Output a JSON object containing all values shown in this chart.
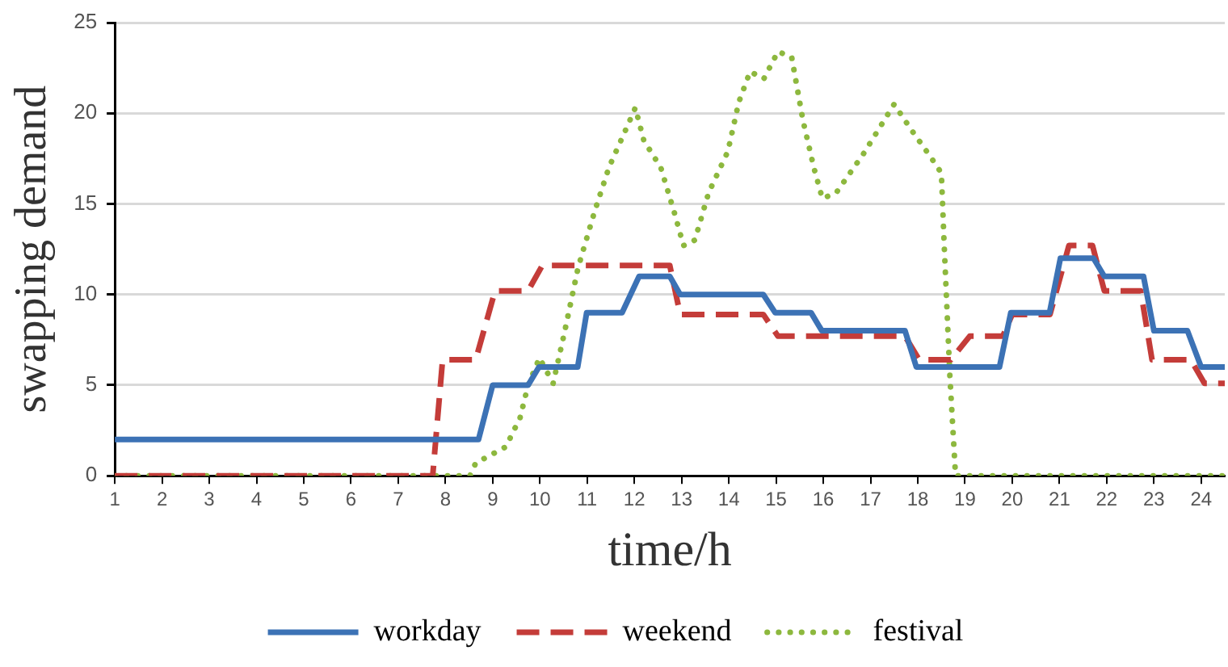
{
  "chart_data": {
    "type": "line",
    "xlabel": "time/h",
    "ylabel": "swapping demand",
    "xlim": [
      1,
      24.5
    ],
    "xticks": [
      1,
      2,
      3,
      4,
      5,
      6,
      7,
      8,
      9,
      10,
      11,
      12,
      13,
      14,
      15,
      16,
      17,
      18,
      19,
      20,
      21,
      22,
      23,
      24
    ],
    "ylim": [
      0,
      25
    ],
    "yticks": [
      0,
      5,
      10,
      15,
      20,
      25
    ],
    "grid": "y",
    "legend": "bottom",
    "marker": "none",
    "series": [
      {
        "name": "workday",
        "color": "#3c72b5",
        "line_style": "solid",
        "x": [
          1,
          8.7,
          9.0,
          9.75,
          9.98,
          10.8,
          10.99,
          11.74,
          12.1,
          12.75,
          12.97,
          14.73,
          14.98,
          15.74,
          15.97,
          17.73,
          17.97,
          19.73,
          19.97,
          20.79,
          21.02,
          21.72,
          21.95,
          22.78,
          23.0,
          23.71,
          24.0,
          24.5
        ],
        "values": [
          2,
          2,
          5,
          5,
          6,
          6,
          9,
          9,
          11,
          11,
          10,
          10,
          9,
          9,
          8,
          8,
          6,
          6,
          9,
          9,
          12,
          12,
          11,
          11,
          8,
          8,
          6,
          6
        ]
      },
      {
        "name": "weekend",
        "color": "#c43c39",
        "line_style": "dashed",
        "x": [
          1,
          7.73,
          7.94,
          8.64,
          9.05,
          9.75,
          10.05,
          12.75,
          12.97,
          14.73,
          15.04,
          17.73,
          18.03,
          18.7,
          19.1,
          19.8,
          20.0,
          20.8,
          21.2,
          21.7,
          21.95,
          22.72,
          22.96,
          23.78,
          24.07,
          24.5
        ],
        "values": [
          0,
          0,
          6.4,
          6.4,
          10.2,
          10.2,
          11.6,
          11.6,
          8.9,
          8.9,
          7.7,
          7.7,
          6.4,
          6.4,
          7.7,
          7.7,
          8.9,
          8.9,
          12.7,
          12.7,
          10.2,
          10.2,
          6.4,
          6.4,
          5.1,
          5.1
        ]
      },
      {
        "name": "festival",
        "color": "#8db83e",
        "line_style": "dotted",
        "x": [
          1,
          8.52,
          8.64,
          9.28,
          9.58,
          9.75,
          9.99,
          10.28,
          10.52,
          10.81,
          11.16,
          11.46,
          11.87,
          12.02,
          12.2,
          12.56,
          12.86,
          13.04,
          13.28,
          13.57,
          13.98,
          14.21,
          14.45,
          14.74,
          15.04,
          15.33,
          15.57,
          15.8,
          15.98,
          16.27,
          16.86,
          17.5,
          17.86,
          18.27,
          18.5,
          18.56,
          18.68,
          18.8,
          24.5
        ],
        "values": [
          0,
          0,
          0.7,
          1.6,
          3.2,
          5.0,
          6.5,
          5.1,
          7.9,
          11.5,
          14.6,
          17.0,
          19.4,
          20.3,
          18.5,
          17.0,
          14.4,
          12.7,
          13.0,
          15.6,
          17.9,
          20.6,
          22.3,
          21.9,
          23.4,
          23.1,
          19.6,
          17.0,
          15.3,
          15.6,
          17.8,
          20.5,
          19.1,
          17.6,
          16.7,
          12.7,
          5.5,
          0,
          0
        ]
      }
    ]
  }
}
